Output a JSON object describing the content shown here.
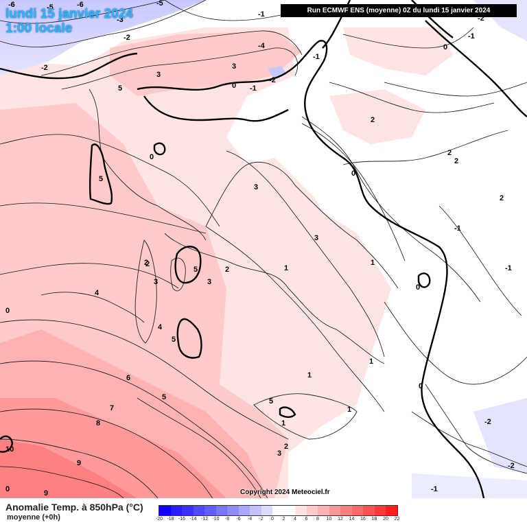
{
  "header": {
    "date_line": "lundi 15 janvier 2024",
    "time_line": "1:00 locale",
    "run_info": "Run ECMWF ENS (moyenne) 0Z du lundi 15 janvier 2024"
  },
  "copyright": "Copyright 2024 Meteociel.fr",
  "footer": {
    "title": "Anomalie Temp. à 850hPa (°C)",
    "subtitle": "moyenne   (+0h)"
  },
  "legend": {
    "colors": [
      "#1400ff",
      "#2a1cff",
      "#3c32ff",
      "#4e48ff",
      "#625eff",
      "#7a76ff",
      "#908cff",
      "#a8a6ff",
      "#c2c0ff",
      "#dcdcff",
      "#ffffff",
      "#ffffff",
      "#ffe4e4",
      "#ffcaca",
      "#ffb2b2",
      "#ff9898",
      "#ff8080",
      "#ff6a6a",
      "#ff5252",
      "#ff3838",
      "#ff1e1e"
    ],
    "labels": [
      "-20",
      "-18",
      "-16",
      "-14",
      "-12",
      "-10",
      "-8",
      "-6",
      "-4",
      "-2",
      "0",
      "2",
      "4",
      "6",
      "8",
      "10",
      "12",
      "14",
      "16",
      "18",
      "20",
      "22"
    ]
  },
  "map_labels": [
    "-6",
    "-5",
    "-5",
    "-3",
    "-2",
    "-1",
    "-4",
    "-2",
    "-2",
    "-1",
    "0",
    "0",
    "5",
    "3",
    "3",
    "0",
    "-1",
    "-2",
    "0",
    "-1",
    "-1",
    "1",
    "2",
    "2",
    "2",
    "5",
    "0",
    "3",
    "2",
    "-1",
    "0",
    "2",
    "1",
    "5",
    "3",
    "2",
    "3",
    "4",
    "3",
    "1",
    "1",
    "0",
    "4",
    "5",
    "1",
    "1",
    "6",
    "5",
    "7",
    "5",
    "0",
    "8",
    "9",
    "10",
    "9",
    "2",
    "3",
    "-1",
    "-2",
    "-2",
    "2",
    "-6"
  ]
}
